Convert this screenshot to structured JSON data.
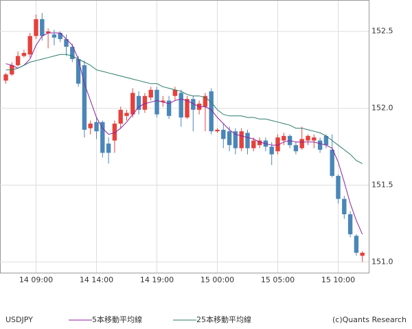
{
  "chart_data": {
    "type": "candlestick",
    "title": "USDJPY",
    "credit": "(c)Quants Research",
    "categories": [
      null,
      null,
      null,
      null,
      null,
      "14 09:00",
      null,
      null,
      null,
      null,
      null,
      null,
      null,
      null,
      null,
      "14 14:00",
      null,
      null,
      null,
      null,
      null,
      null,
      null,
      null,
      null,
      "14 19:00",
      null,
      null,
      null,
      null,
      null,
      null,
      null,
      null,
      null,
      "15 00:00",
      null,
      null,
      null,
      null,
      null,
      null,
      null,
      null,
      null,
      "15 05:00",
      null,
      null,
      null,
      null,
      null,
      null,
      null,
      null,
      null,
      "15 10:00",
      null,
      null,
      null,
      null
    ],
    "open": [
      152.18,
      152.22,
      152.28,
      152.34,
      152.35,
      152.47,
      152.58,
      152.49,
      152.48,
      152.49,
      152.45,
      152.4,
      152.32,
      152.28,
      151.87,
      151.91,
      151.91,
      151.77,
      151.79,
      151.9,
      151.95,
      151.96,
      152.08,
      151.99,
      152.07,
      152.12,
      152.04,
      152.05,
      152.08,
      152.1,
      151.94,
      152.06,
      151.99,
      152.01,
      152.11,
      151.85,
      151.86,
      151.85,
      151.85,
      151.74,
      151.84,
      151.74,
      151.76,
      151.79,
      151.75,
      151.72,
      151.79,
      151.82,
      151.76,
      151.74,
      151.79,
      151.79,
      151.79,
      151.82,
      151.73,
      151.56,
      151.41,
      151.31,
      151.17,
      151.04
    ],
    "high": [
      152.23,
      152.3,
      152.37,
      152.38,
      152.49,
      152.61,
      152.62,
      152.52,
      152.51,
      152.5,
      152.48,
      152.42,
      152.34,
      152.31,
      151.92,
      151.94,
      151.92,
      151.81,
      151.92,
      152.01,
      151.99,
      152.13,
      152.11,
      152.1,
      152.14,
      152.14,
      152.08,
      152.08,
      152.14,
      152.12,
      152.08,
      152.08,
      152.05,
      152.1,
      152.13,
      151.87,
      151.9,
      151.88,
      151.87,
      151.87,
      151.86,
      151.81,
      151.81,
      151.81,
      151.78,
      151.83,
      151.84,
      151.83,
      151.78,
      151.88,
      151.83,
      151.83,
      151.81,
      151.83,
      151.83,
      151.57,
      151.43,
      151.33,
      151.18,
      151.07
    ],
    "low": [
      152.16,
      152.21,
      152.27,
      152.33,
      152.33,
      152.45,
      152.44,
      152.39,
      152.41,
      152.43,
      152.34,
      152.3,
      152.14,
      151.81,
      151.83,
      151.8,
      151.68,
      151.64,
      151.71,
      151.87,
      151.92,
      151.94,
      151.96,
      151.97,
      152.05,
      151.94,
      152.01,
      151.93,
      152.05,
      151.88,
      151.93,
      151.85,
      151.96,
      151.85,
      151.83,
      151.84,
      151.74,
      151.72,
      151.7,
      151.72,
      151.7,
      151.72,
      151.74,
      151.72,
      151.63,
      151.7,
      151.76,
      151.74,
      151.7,
      151.73,
      151.76,
      151.74,
      151.71,
      151.74,
      151.55,
      151.38,
      151.28,
      151.16,
      151.04,
      151.0
    ],
    "close": [
      152.22,
      152.28,
      152.34,
      152.36,
      152.47,
      152.58,
      152.47,
      152.5,
      152.46,
      152.45,
      152.4,
      152.32,
      152.16,
      151.86,
      151.9,
      151.85,
      151.71,
      151.71,
      151.9,
      151.99,
      151.97,
      152.1,
      151.99,
      152.08,
      152.12,
      151.96,
      152.05,
      151.95,
      152.12,
      151.94,
      152.06,
      151.99,
      152.03,
      152.08,
      151.85,
      151.86,
      151.8,
      151.76,
      151.74,
      151.85,
      151.74,
      151.79,
      151.79,
      151.75,
      151.7,
      151.81,
      151.82,
      151.76,
      151.72,
      151.8,
      151.82,
      151.81,
      151.73,
      151.76,
      151.56,
      151.41,
      151.31,
      151.18,
      151.06,
      151.06
    ],
    "up_color": "#e5413b",
    "down_color": "#4a86b8",
    "series": [
      {
        "name": "5本移動平均線",
        "color": "#8e1f9c",
        "values": [
          152.29,
          152.28,
          152.26,
          152.28,
          152.32,
          152.41,
          152.47,
          152.49,
          152.49,
          152.49,
          152.45,
          152.41,
          152.32,
          152.16,
          152.05,
          151.94,
          151.87,
          151.83,
          151.84,
          151.87,
          151.91,
          151.96,
          152.01,
          152.03,
          152.04,
          152.05,
          152.04,
          152.03,
          152.05,
          152.06,
          152.05,
          152.03,
          152.01,
          152.01,
          151.99,
          151.94,
          151.9,
          151.86,
          151.83,
          151.82,
          151.81,
          151.8,
          151.78,
          151.77,
          151.76,
          151.76,
          151.78,
          151.79,
          151.78,
          151.78,
          151.78,
          151.78,
          151.77,
          151.76,
          151.74,
          151.65,
          151.52,
          151.38,
          151.27,
          151.18
        ]
      },
      {
        "name": "25本移動平均線",
        "color": "#2c7a6b",
        "values": [
          152.25,
          152.25,
          152.26,
          152.28,
          152.3,
          152.31,
          152.32,
          152.33,
          152.34,
          152.35,
          152.35,
          152.34,
          152.32,
          152.3,
          152.28,
          152.25,
          152.24,
          152.23,
          152.22,
          152.21,
          152.2,
          152.19,
          152.18,
          152.17,
          152.16,
          152.16,
          152.14,
          152.13,
          152.12,
          152.11,
          152.09,
          152.08,
          152.08,
          152.07,
          152.04,
          151.99,
          151.96,
          151.95,
          151.95,
          151.95,
          151.94,
          151.94,
          151.93,
          151.93,
          151.92,
          151.91,
          151.9,
          151.89,
          151.87,
          151.87,
          151.86,
          151.85,
          151.84,
          151.82,
          151.79,
          151.76,
          151.73,
          151.7,
          151.66,
          151.64
        ]
      }
    ],
    "ylim": [
      150.93,
      152.7
    ],
    "yticks": [
      {
        "value": 151.0,
        "label": "151.0"
      },
      {
        "value": 151.5,
        "label": "151.5"
      },
      {
        "value": 152.0,
        "label": "152.0"
      },
      {
        "value": 152.5,
        "label": "152.5"
      }
    ],
    "grid": true
  }
}
